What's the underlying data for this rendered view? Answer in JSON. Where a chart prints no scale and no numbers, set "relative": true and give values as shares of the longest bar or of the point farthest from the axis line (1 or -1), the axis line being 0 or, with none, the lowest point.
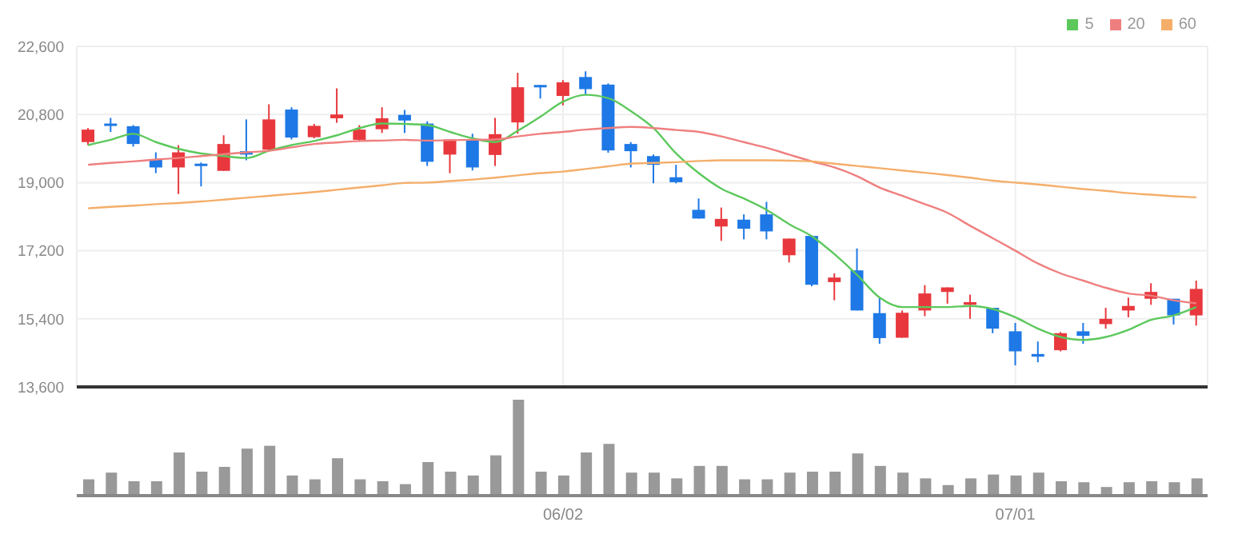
{
  "chart_data": [
    {
      "type": "candlestick",
      "categories": [
        null,
        null,
        null,
        null,
        null,
        null,
        null,
        null,
        null,
        null,
        null,
        null,
        null,
        null,
        null,
        null,
        null,
        null,
        null,
        null,
        null,
        null,
        null,
        null,
        null,
        null,
        null,
        null,
        null,
        null,
        null,
        null,
        null,
        null,
        null,
        null,
        null,
        null,
        null,
        null,
        null,
        null,
        null,
        null,
        null,
        null,
        null,
        null,
        null,
        null
      ],
      "ohlc": [
        [
          20070,
          20440,
          19990,
          20400
        ],
        [
          20560,
          20710,
          20340,
          20500
        ],
        [
          20490,
          20520,
          19950,
          20020
        ],
        [
          19620,
          19800,
          19250,
          19400
        ],
        [
          19400,
          19990,
          18700,
          19800
        ],
        [
          19500,
          19530,
          18900,
          19440
        ],
        [
          19310,
          20250,
          19310,
          20020
        ],
        [
          19830,
          20670,
          19590,
          19740
        ],
        [
          19870,
          21070,
          19830,
          20670
        ],
        [
          20930,
          20990,
          20140,
          20190
        ],
        [
          20200,
          20550,
          20170,
          20500
        ],
        [
          20700,
          21490,
          20580,
          20800
        ],
        [
          20130,
          20520,
          20080,
          20400
        ],
        [
          20410,
          20990,
          20310,
          20700
        ],
        [
          20790,
          20920,
          20310,
          20640
        ],
        [
          20560,
          20620,
          19440,
          19550
        ],
        [
          19740,
          20140,
          19250,
          20140
        ],
        [
          20110,
          20290,
          19320,
          19400
        ],
        [
          19730,
          20710,
          19440,
          20280
        ],
        [
          20590,
          21900,
          20290,
          21520
        ],
        [
          21580,
          21580,
          21220,
          21530
        ],
        [
          21290,
          21710,
          21040,
          21650
        ],
        [
          21790,
          21940,
          21310,
          21470
        ],
        [
          21590,
          21620,
          19790,
          19850
        ],
        [
          20020,
          20070,
          19400,
          19830
        ],
        [
          19700,
          19740,
          18980,
          19470
        ],
        [
          19140,
          19470,
          18980,
          19010
        ],
        [
          18280,
          18580,
          18050,
          18050
        ],
        [
          17840,
          18340,
          17460,
          18040
        ],
        [
          18020,
          18160,
          17500,
          17780
        ],
        [
          18160,
          18490,
          17500,
          17710
        ],
        [
          17080,
          17520,
          16890,
          17520
        ],
        [
          17590,
          17610,
          16260,
          16300
        ],
        [
          16370,
          16600,
          15890,
          16490
        ],
        [
          16680,
          17260,
          15620,
          15620
        ],
        [
          15550,
          15960,
          14740,
          14890
        ],
        [
          14900,
          15620,
          14900,
          15560
        ],
        [
          15620,
          16290,
          15470,
          16070
        ],
        [
          16110,
          16230,
          15800,
          16230
        ],
        [
          15770,
          16040,
          15400,
          15840
        ],
        [
          15690,
          15690,
          15020,
          15140
        ],
        [
          15070,
          15290,
          14170,
          14540
        ],
        [
          14470,
          14800,
          14250,
          14400
        ],
        [
          14570,
          15050,
          14540,
          15020
        ],
        [
          15070,
          15290,
          14740,
          14950
        ],
        [
          15260,
          15690,
          15140,
          15400
        ],
        [
          15620,
          15960,
          15440,
          15740
        ],
        [
          15930,
          16340,
          15770,
          16110
        ],
        [
          15930,
          15930,
          15250,
          15490
        ],
        [
          15490,
          16410,
          15220,
          16190
        ]
      ],
      "colors": [
        "#e8383d",
        "#1e78e6",
        "#1e78e6",
        "#1e78e6",
        "#e8383d",
        "#1e78e6",
        "#e8383d",
        "#1e78e6",
        "#e8383d",
        "#1e78e6",
        "#e8383d",
        "#e8383d",
        "#e8383d",
        "#e8383d",
        "#1e78e6",
        "#1e78e6",
        "#e8383d",
        "#1e78e6",
        "#e8383d",
        "#e8383d",
        "#1e78e6",
        "#e8383d",
        "#1e78e6",
        "#1e78e6",
        "#1e78e6",
        "#1e78e6",
        "#1e78e6",
        "#1e78e6",
        "#e8383d",
        "#1e78e6",
        "#1e78e6",
        "#e8383d",
        "#1e78e6",
        "#e8383d",
        "#1e78e6",
        "#1e78e6",
        "#e8383d",
        "#e8383d",
        "#e8383d",
        "#e8383d",
        "#1e78e6",
        "#1e78e6",
        "#1e78e6",
        "#e8383d",
        "#1e78e6",
        "#e8383d",
        "#e8383d",
        "#e8383d",
        "#1e78e6",
        "#e8383d"
      ],
      "series": [
        {
          "type": "line",
          "name": "5",
          "color": "#5cc85c",
          "values": [
            19990,
            20130,
            20290,
            20070,
            19890,
            19770,
            19700,
            19650,
            19840,
            19990,
            20100,
            20250,
            20440,
            20560,
            20550,
            20520,
            20340,
            20170,
            20070,
            20370,
            20740,
            21140,
            21320,
            21230,
            20890,
            20440,
            19770,
            19250,
            18840,
            18580,
            18280,
            17900,
            17580,
            17110,
            16560,
            15960,
            15710,
            15710,
            15710,
            15740,
            15660,
            15440,
            15140,
            14920,
            14840,
            14920,
            15110,
            15370,
            15490,
            15710
          ]
        },
        {
          "type": "line",
          "name": "20",
          "color": "#ef7f7f",
          "values": [
            19470,
            19520,
            19560,
            19610,
            19650,
            19700,
            19750,
            19800,
            19840,
            19930,
            20020,
            20060,
            20100,
            20110,
            20130,
            20110,
            20120,
            20130,
            20140,
            20220,
            20290,
            20340,
            20400,
            20440,
            20470,
            20440,
            20390,
            20340,
            20220,
            20070,
            19920,
            19740,
            19560,
            19400,
            19170,
            18870,
            18650,
            18430,
            18200,
            17860,
            17530,
            17200,
            16860,
            16600,
            16410,
            16220,
            16070,
            16010,
            15890,
            15810
          ]
        },
        {
          "type": "line",
          "name": "60",
          "color": "#f4ae6a",
          "values": [
            18320,
            18360,
            18390,
            18430,
            18460,
            18500,
            18550,
            18600,
            18650,
            18700,
            18750,
            18810,
            18870,
            18930,
            18990,
            19000,
            19040,
            19080,
            19130,
            19190,
            19250,
            19290,
            19360,
            19430,
            19500,
            19520,
            19540,
            19570,
            19590,
            19590,
            19590,
            19580,
            19560,
            19500,
            19440,
            19380,
            19320,
            19260,
            19200,
            19130,
            19050,
            19000,
            18950,
            18890,
            18830,
            18780,
            18720,
            18680,
            18640,
            18610
          ]
        }
      ],
      "ylim": [
        13600,
        22600
      ],
      "yticks": [
        {
          "value": 13600,
          "label": "13,600"
        },
        {
          "value": 15400,
          "label": "15,400"
        },
        {
          "value": 17200,
          "label": "17,200"
        },
        {
          "value": 19000,
          "label": "19,000"
        },
        {
          "value": 20800,
          "label": "20,800"
        },
        {
          "value": 22600,
          "label": "22,600"
        }
      ],
      "grid": true,
      "legend": "top right",
      "tick_labels": "y"
    },
    {
      "type": "bar",
      "relative": true,
      "color": "#999999",
      "categories": [
        null,
        null,
        null,
        null,
        null,
        null,
        null,
        null,
        null,
        null,
        null,
        null,
        null,
        null,
        null,
        null,
        null,
        null,
        null,
        null,
        null,
        "06/02",
        null,
        null,
        null,
        null,
        null,
        null,
        null,
        null,
        null,
        null,
        null,
        null,
        null,
        null,
        null,
        null,
        null,
        null,
        null,
        "07/01",
        null,
        null,
        null,
        null,
        null,
        null,
        null,
        null
      ],
      "values": [
        0.17,
        0.24,
        0.15,
        0.15,
        0.45,
        0.25,
        0.3,
        0.49,
        0.52,
        0.21,
        0.17,
        0.39,
        0.17,
        0.15,
        0.12,
        0.35,
        0.25,
        0.21,
        0.42,
        1,
        0.25,
        0.21,
        0.45,
        0.54,
        0.24,
        0.24,
        0.18,
        0.31,
        0.31,
        0.17,
        0.17,
        0.24,
        0.25,
        0.25,
        0.44,
        0.31,
        0.24,
        0.18,
        0.11,
        0.18,
        0.22,
        0.21,
        0.24,
        0.15,
        0.14,
        0.09,
        0.14,
        0.15,
        0.14,
        0.18
      ]
    }
  ]
}
